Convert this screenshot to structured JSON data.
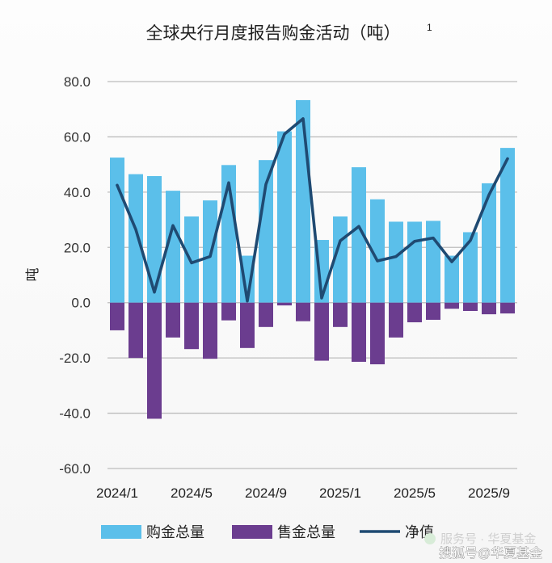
{
  "chart_data": {
    "type": "bar",
    "title": "全球央行月度报告购金活动（吨）",
    "title_superscript": "1",
    "xlabel": "",
    "ylabel": "吨",
    "ylim": [
      -60,
      80
    ],
    "yticks": [
      "80.0",
      "60.0",
      "40.0",
      "20.0",
      "0.0",
      "-20.0",
      "-40.0",
      "-60.0"
    ],
    "ytick_values": [
      80,
      60,
      40,
      20,
      0,
      -20,
      -40,
      -60
    ],
    "xtick_labels": [
      "2024/1",
      "2024/5",
      "2024/9",
      "2025/1",
      "2025/5",
      "2025/9"
    ],
    "xtick_month_index": [
      0,
      4,
      8,
      12,
      16,
      20
    ],
    "grid": true,
    "legend": "bottom",
    "series": [
      {
        "name": "购金总量",
        "type": "bar",
        "color": "#5bbfea",
        "values": [
          52.5,
          46.5,
          45.8,
          40.5,
          31.2,
          37.0,
          49.8,
          17.0,
          51.6,
          62.0,
          73.3,
          22.7,
          31.2,
          49.0,
          37.4,
          29.3,
          29.3,
          29.6,
          17.0,
          25.5,
          43.2,
          56.0
        ]
      },
      {
        "name": "售金总量",
        "type": "bar",
        "color": "#6b3d8f",
        "values": [
          -10.0,
          -20.0,
          -42.0,
          -12.6,
          -16.8,
          -20.3,
          -6.4,
          -16.4,
          -8.8,
          -1.0,
          -6.7,
          -21.0,
          -8.8,
          -21.4,
          -22.3,
          -12.6,
          -7.1,
          -6.2,
          -2.2,
          -3.0,
          -4.2,
          -3.9
        ]
      },
      {
        "name": "净值",
        "type": "line",
        "color": "#1f4a72",
        "values": [
          42.5,
          26.5,
          3.8,
          27.9,
          14.4,
          16.7,
          43.4,
          0.6,
          42.8,
          61.0,
          66.6,
          1.7,
          22.4,
          27.6,
          15.1,
          16.7,
          22.2,
          23.4,
          14.8,
          22.5,
          39.0,
          52.1
        ]
      }
    ]
  },
  "watermark": {
    "service": "服务号 · 华夏基金",
    "source": "搜狐号@华夏基金"
  }
}
